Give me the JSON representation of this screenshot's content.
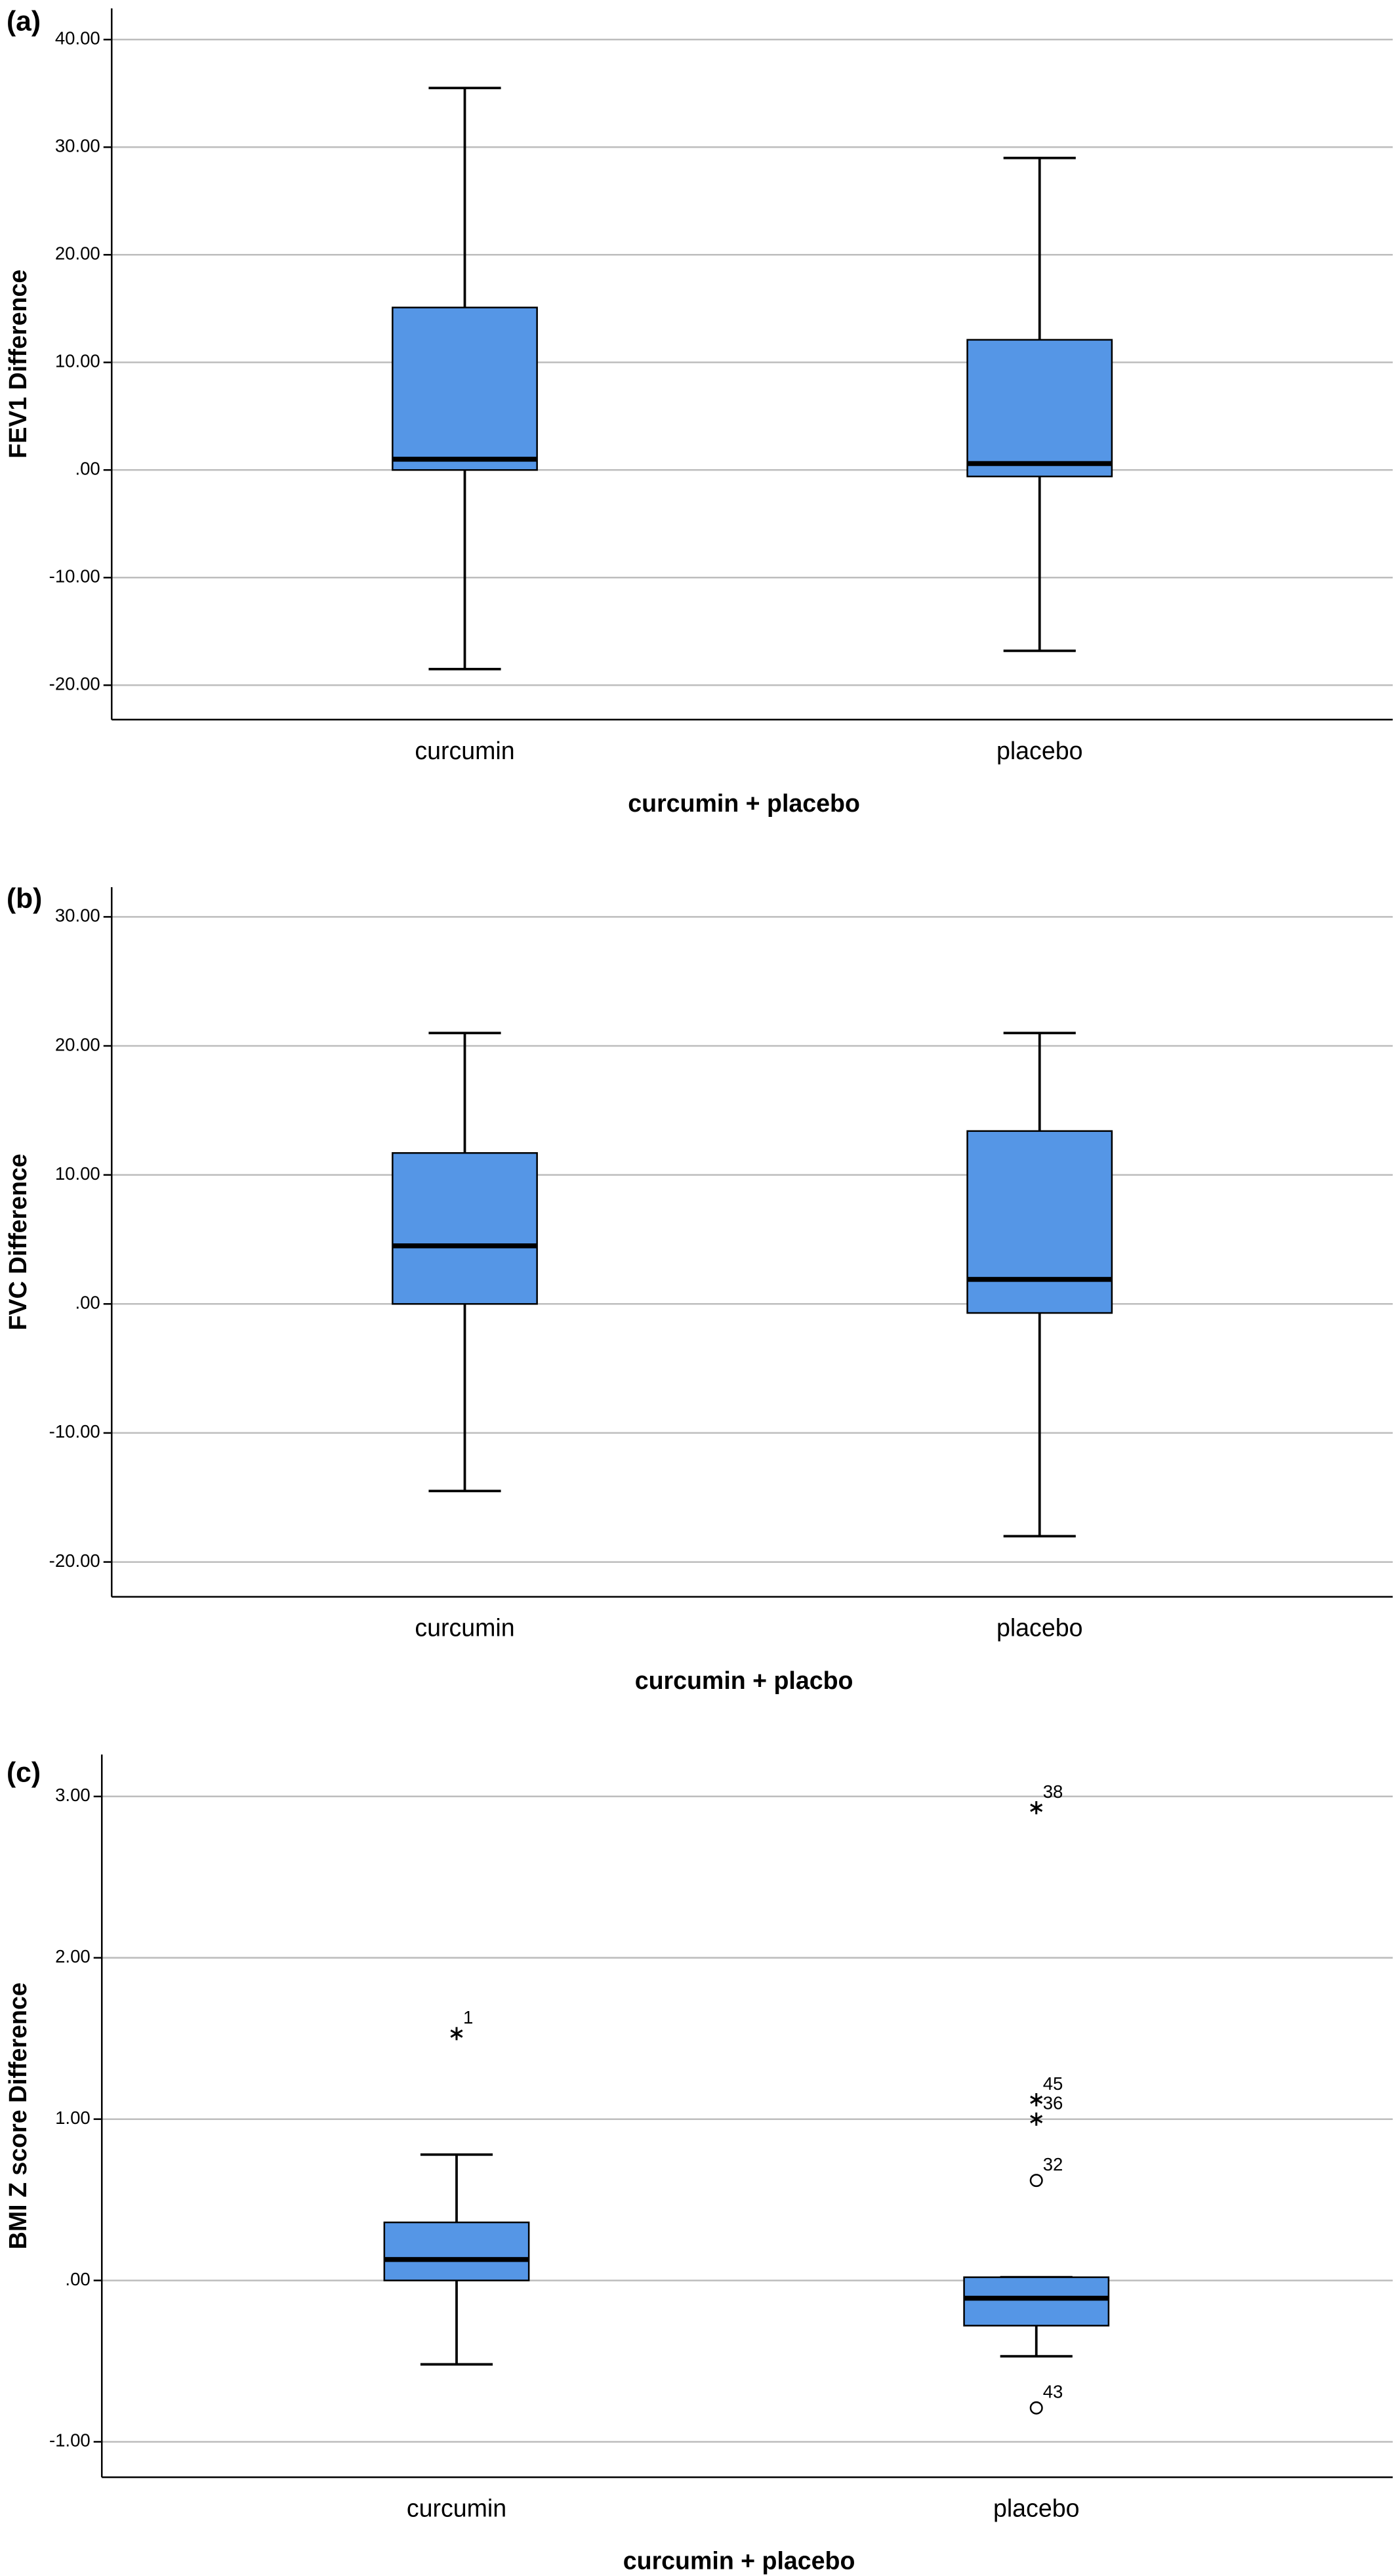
{
  "chart_data": [
    {
      "type": "box",
      "panel": "(a)",
      "ylabel": "FEV1 Difference",
      "xlabel": "curcumin + placebo",
      "categories": [
        "curcumin",
        "placebo"
      ],
      "color": "#5596e6",
      "grid": true,
      "ylim": [
        -23.2,
        42.9
      ],
      "yticks": [
        {
          "value": 40,
          "label": "40.00"
        },
        {
          "value": 30,
          "label": "30.00"
        },
        {
          "value": 20,
          "label": "20.00"
        },
        {
          "value": 10,
          "label": "10.00"
        },
        {
          "value": 0,
          "label": ".00"
        },
        {
          "value": -10,
          "label": "-10.00"
        },
        {
          "value": -20,
          "label": "-20.00"
        }
      ],
      "boxes": [
        {
          "min": -18.5,
          "q1": 0,
          "median": 1,
          "q3": 15.1,
          "max": 35.5,
          "outliers": []
        },
        {
          "min": -16.8,
          "q1": -0.6,
          "median": 0.6,
          "q3": 12.1,
          "max": 29,
          "outliers": []
        }
      ]
    },
    {
      "type": "box",
      "panel": "(b)",
      "ylabel": "FVC Difference",
      "xlabel": "curcumin + placbo",
      "categories": [
        "curcumin",
        "placebo"
      ],
      "color": "#5596e6",
      "grid": true,
      "ylim": [
        -22.7,
        32.3
      ],
      "yticks": [
        {
          "value": 30,
          "label": "30.00"
        },
        {
          "value": 20,
          "label": "20.00"
        },
        {
          "value": 10,
          "label": "10.00"
        },
        {
          "value": 0,
          "label": ".00"
        },
        {
          "value": -10,
          "label": "-10.00"
        },
        {
          "value": -20,
          "label": "-20.00"
        }
      ],
      "boxes": [
        {
          "min": -14.5,
          "q1": 0,
          "median": 4.5,
          "q3": 11.7,
          "max": 21,
          "outliers": []
        },
        {
          "min": -18,
          "q1": -0.7,
          "median": 1.9,
          "q3": 13.4,
          "max": 21,
          "outliers": []
        }
      ]
    },
    {
      "type": "box",
      "panel": "(c)",
      "ylabel": "BMI Z score Difference",
      "xlabel": "curcumin + placebo",
      "categories": [
        "curcumin",
        "placebo"
      ],
      "color": "#5596e6",
      "grid": true,
      "ylim": [
        -1.22,
        3.26
      ],
      "yticks": [
        {
          "value": 3,
          "label": "3.00"
        },
        {
          "value": 2,
          "label": "2.00"
        },
        {
          "value": 1,
          "label": "1.00"
        },
        {
          "value": 0,
          "label": ".00"
        },
        {
          "value": -1,
          "label": "-1.00"
        }
      ],
      "boxes": [
        {
          "min": -0.52,
          "q1": 0,
          "median": 0.13,
          "q3": 0.36,
          "max": 0.78,
          "outliers": [
            {
              "value": 1.53,
              "label": "1",
              "marker": "star"
            }
          ]
        },
        {
          "min": -0.47,
          "q1": -0.28,
          "median": -0.11,
          "q3": 0.02,
          "max": 0.02,
          "outliers": [
            {
              "value": 2.93,
              "label": "38",
              "marker": "star"
            },
            {
              "value": 1.12,
              "label": "45",
              "marker": "star"
            },
            {
              "value": 1.0,
              "label": "36",
              "marker": "star"
            },
            {
              "value": 0.62,
              "label": "32",
              "marker": "circle"
            },
            {
              "value": -0.79,
              "label": "43",
              "marker": "circle"
            }
          ]
        }
      ]
    }
  ]
}
